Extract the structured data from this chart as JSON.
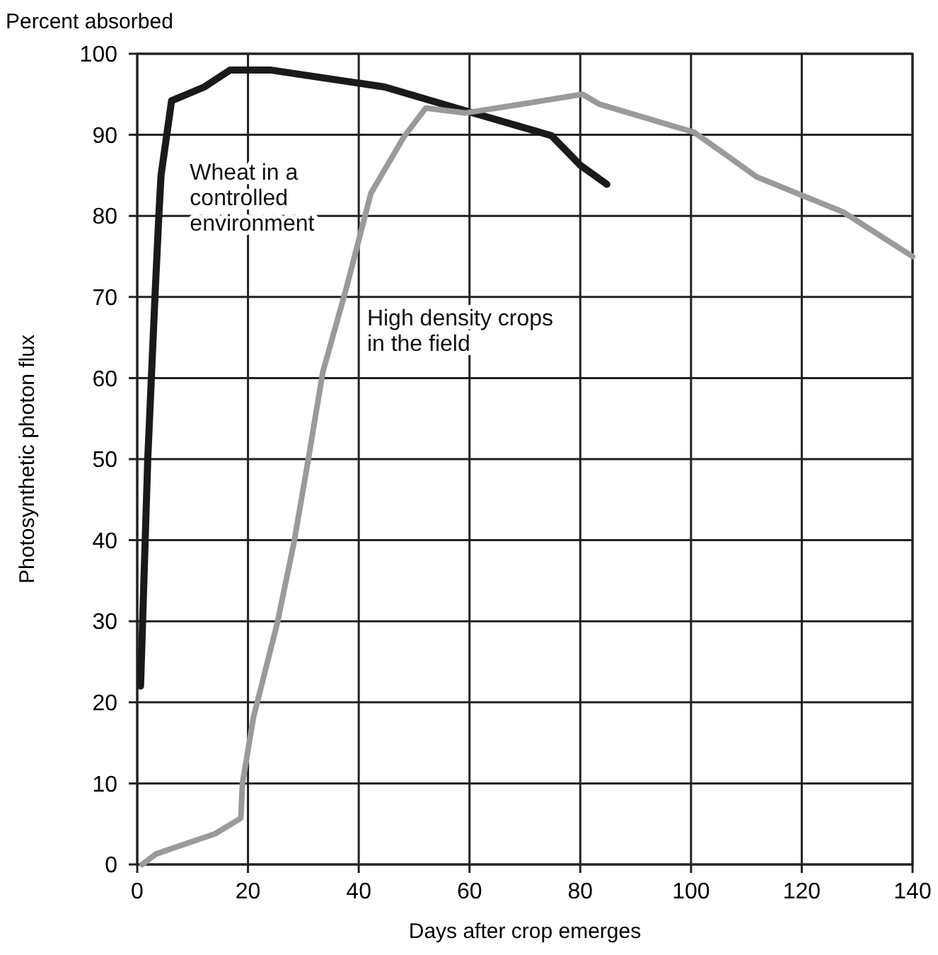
{
  "chart_data": {
    "type": "line",
    "ylabel": "Photosynthetic photon flux",
    "xlabel": "Days after crop emerges",
    "annotations": [
      "Percent absorbed"
    ],
    "xlim": [
      0,
      140
    ],
    "ylim": [
      0,
      100
    ],
    "xticks": [
      0,
      20,
      40,
      60,
      80,
      100,
      120,
      140
    ],
    "yticks": [
      0,
      10,
      20,
      30,
      40,
      50,
      60,
      70,
      80,
      90,
      100
    ],
    "grid": true,
    "marker": "none",
    "line_style": "solid",
    "series": [
      {
        "name": "Wheat in a controlled environment",
        "color": "#1a1a1a",
        "x": [
          0.6,
          1.9,
          3.2,
          3.9,
          4.3,
          6.2,
          12.1,
          16.8,
          24,
          44.7,
          57.6,
          74.8,
          80.1,
          84.8
        ],
        "values": [
          22,
          50,
          70,
          80,
          85,
          94.2,
          95.9,
          98,
          98,
          95.9,
          93.3,
          89.9,
          86.2,
          83.9
        ]
      },
      {
        "name": "High density crops in the field",
        "color": "#9a9a9a",
        "x": [
          0.9,
          3.4,
          14.1,
          18.7,
          19,
          21,
          25.3,
          28.3,
          30.8,
          33.5,
          37.8,
          42.2,
          48.2,
          52.1,
          59.3,
          69.6,
          80.4,
          83.4,
          100.6,
          111.9,
          127.4,
          140
        ],
        "values": [
          0,
          1.3,
          3.8,
          5.7,
          10,
          18.2,
          29.8,
          39.7,
          49.6,
          60.7,
          71.2,
          82.8,
          89.8,
          93.3,
          92.7,
          93.8,
          95,
          93.8,
          90.3,
          84.8,
          80.5,
          75
        ]
      }
    ]
  }
}
